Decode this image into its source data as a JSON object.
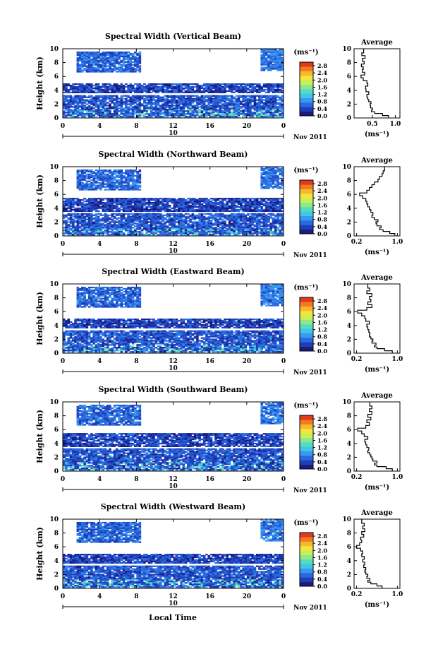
{
  "figure": {
    "xlabel": "Local Time",
    "date_label": "Nov 2011",
    "day_marker": "10",
    "colorbar_unit": "(ms⁻¹)",
    "avg_title": "Average",
    "avg_xlabel": "(ms⁻¹)",
    "ylabel": "Height (km)"
  },
  "chart_data": [
    {
      "type": "heatmap",
      "title": "Spectral Width (Vertical Beam)",
      "xlabel": "",
      "ylabel": "Height (km)",
      "xlim": [
        0,
        24
      ],
      "ylim": [
        0,
        10
      ],
      "xticks": [
        "0",
        "4",
        "8",
        "12",
        "16",
        "20",
        "0"
      ],
      "yticks": [
        "0",
        "2",
        "4",
        "6",
        "8",
        "10"
      ],
      "colorbar": {
        "unit": "(ms⁻¹)",
        "ticks": [
          "0.0",
          "0.4",
          "0.8",
          "1.2",
          "1.6",
          "2.0",
          "2.4",
          "2.8"
        ],
        "range": [
          0,
          3.0
        ]
      },
      "layers": [
        {
          "t0": 0,
          "t1": 24,
          "h0": 0.2,
          "h1": 3.3,
          "value": 0.5
        },
        {
          "t0": 0,
          "t1": 24,
          "h0": 3.6,
          "h1": 5.0,
          "value": 0.4
        },
        {
          "t0": 1.5,
          "t1": 8.5,
          "h0": 6.6,
          "h1": 9.6,
          "value": 0.6
        },
        {
          "t0": 21.5,
          "t1": 24,
          "h0": 6.8,
          "h1": 10.0,
          "value": 0.7
        }
      ],
      "average": {
        "xlabel": "(ms⁻¹)",
        "xlim": [
          0.1,
          1.1
        ],
        "xticks": [
          0.5,
          1.0
        ],
        "xticklabels": [
          "0.5",
          "1.0"
        ],
        "height": [
          0.2,
          0.5,
          0.8,
          1.0,
          1.3,
          1.6,
          1.9,
          2.2,
          2.5,
          2.8,
          3.2,
          3.6,
          4.0,
          4.4,
          4.8,
          5.2,
          5.6,
          6.0,
          6.4,
          6.8,
          7.2,
          7.6,
          8.0,
          8.4,
          8.8,
          9.2,
          9.6
        ],
        "values": [
          0.85,
          0.72,
          0.55,
          0.48,
          0.5,
          0.46,
          0.45,
          0.47,
          0.42,
          0.4,
          0.38,
          0.42,
          0.36,
          0.35,
          0.4,
          0.38,
          0.3,
          0.25,
          0.33,
          0.28,
          0.3,
          0.26,
          0.32,
          0.28,
          0.34,
          0.27,
          0.31
        ]
      }
    },
    {
      "type": "heatmap",
      "title": "Spectral Width (Northward Beam)",
      "xlabel": "",
      "ylabel": "Height (km)",
      "xlim": [
        0,
        24
      ],
      "ylim": [
        0,
        10
      ],
      "xticks": [
        "0",
        "4",
        "8",
        "12",
        "16",
        "20",
        "0"
      ],
      "yticks": [
        "0",
        "2",
        "4",
        "6",
        "8",
        "10"
      ],
      "colorbar": {
        "unit": "(ms⁻¹)",
        "ticks": [
          "0.0",
          "0.4",
          "0.8",
          "1.2",
          "1.6",
          "2.0",
          "2.4",
          "2.8"
        ],
        "range": [
          0,
          3.0
        ]
      },
      "layers": [
        {
          "t0": 0,
          "t1": 24,
          "h0": 0.2,
          "h1": 3.3,
          "value": 0.5
        },
        {
          "t0": 0,
          "t1": 24,
          "h0": 3.6,
          "h1": 5.5,
          "value": 0.4
        },
        {
          "t0": 1.5,
          "t1": 8.5,
          "h0": 6.6,
          "h1": 9.6,
          "value": 0.6
        },
        {
          "t0": 21.5,
          "t1": 24,
          "h0": 6.8,
          "h1": 10.0,
          "value": 0.7
        }
      ],
      "average": {
        "xlabel": "(ms⁻¹)",
        "xlim": [
          0.15,
          1.05
        ],
        "xticks": [
          0.2,
          1.0
        ],
        "xticklabels": [
          "0.2",
          "1.0"
        ],
        "height": [
          0.2,
          0.5,
          0.8,
          1.0,
          1.3,
          1.6,
          1.9,
          2.2,
          2.5,
          2.8,
          3.2,
          3.6,
          4.0,
          4.4,
          4.8,
          5.2,
          5.6,
          6.0,
          6.4,
          6.8,
          7.2,
          7.6,
          8.0,
          8.4,
          8.8,
          9.2,
          9.6
        ],
        "values": [
          0.95,
          0.85,
          0.72,
          0.65,
          0.68,
          0.6,
          0.58,
          0.62,
          0.55,
          0.5,
          0.52,
          0.48,
          0.45,
          0.42,
          0.4,
          0.38,
          0.32,
          0.26,
          0.4,
          0.45,
          0.5,
          0.55,
          0.62,
          0.65,
          0.7,
          0.72,
          0.75
        ]
      }
    },
    {
      "type": "heatmap",
      "title": "Spectral Width (Eastward Beam)",
      "xlabel": "",
      "ylabel": "Height (km)",
      "xlim": [
        0,
        24
      ],
      "ylim": [
        0,
        10
      ],
      "xticks": [
        "0",
        "4",
        "8",
        "12",
        "16",
        "20",
        "0"
      ],
      "yticks": [
        "0",
        "2",
        "4",
        "6",
        "8",
        "10"
      ],
      "colorbar": {
        "unit": "(ms⁻¹)",
        "ticks": [
          "0.0",
          "0.4",
          "0.8",
          "1.2",
          "1.6",
          "2.0",
          "2.4",
          "2.8"
        ],
        "range": [
          0,
          3.0
        ]
      },
      "layers": [
        {
          "t0": 0,
          "t1": 24,
          "h0": 0.2,
          "h1": 3.3,
          "value": 0.5
        },
        {
          "t0": 0,
          "t1": 24,
          "h0": 3.6,
          "h1": 5.0,
          "value": 0.4
        },
        {
          "t0": 1.5,
          "t1": 8.5,
          "h0": 6.6,
          "h1": 9.6,
          "value": 0.6
        },
        {
          "t0": 21.5,
          "t1": 24,
          "h0": 6.8,
          "h1": 10.0,
          "value": 0.7
        }
      ],
      "average": {
        "xlabel": "(ms⁻¹)",
        "xlim": [
          0.15,
          1.05
        ],
        "xticks": [
          0.2,
          1.0
        ],
        "xticklabels": [
          "0.2",
          "1.0"
        ],
        "height": [
          0.2,
          0.5,
          0.8,
          1.0,
          1.3,
          1.6,
          1.9,
          2.2,
          2.5,
          2.8,
          3.2,
          3.6,
          4.0,
          4.4,
          4.8,
          5.2,
          5.6,
          6.0,
          6.4,
          6.8,
          7.2,
          7.6,
          8.0,
          8.4,
          8.8,
          9.2,
          9.6
        ],
        "values": [
          0.9,
          0.75,
          0.6,
          0.55,
          0.58,
          0.5,
          0.52,
          0.48,
          0.45,
          0.46,
          0.44,
          0.42,
          0.4,
          0.45,
          0.38,
          0.36,
          0.3,
          0.22,
          0.4,
          0.5,
          0.42,
          0.48,
          0.45,
          0.5,
          0.4,
          0.46,
          0.42
        ]
      }
    },
    {
      "type": "heatmap",
      "title": "Spectral Width (Southward Beam)",
      "xlabel": "",
      "ylabel": "Height (km)",
      "xlim": [
        0,
        24
      ],
      "ylim": [
        0,
        10
      ],
      "xticks": [
        "0",
        "4",
        "8",
        "12",
        "16",
        "20",
        "0"
      ],
      "yticks": [
        "0",
        "2",
        "4",
        "6",
        "8",
        "10"
      ],
      "colorbar": {
        "unit": "(ms⁻¹)",
        "ticks": [
          "0.0",
          "0.4",
          "0.8",
          "1.2",
          "1.6",
          "2.0",
          "2.4",
          "2.8"
        ],
        "range": [
          0,
          3.0
        ]
      },
      "layers": [
        {
          "t0": 0,
          "t1": 24,
          "h0": 0.2,
          "h1": 3.3,
          "value": 0.5
        },
        {
          "t0": 0,
          "t1": 24,
          "h0": 3.6,
          "h1": 5.5,
          "value": 0.4
        },
        {
          "t0": 1.5,
          "t1": 8.5,
          "h0": 6.6,
          "h1": 9.6,
          "value": 0.6
        },
        {
          "t0": 21.5,
          "t1": 24,
          "h0": 6.8,
          "h1": 10.0,
          "value": 0.7
        }
      ],
      "average": {
        "xlabel": "(ms⁻¹)",
        "xlim": [
          0.15,
          1.05
        ],
        "xticks": [
          0.2,
          1.0
        ],
        "xticklabels": [
          "0.2",
          "1.0"
        ],
        "height": [
          0.2,
          0.5,
          0.8,
          1.0,
          1.3,
          1.6,
          1.9,
          2.2,
          2.5,
          2.8,
          3.2,
          3.6,
          4.0,
          4.4,
          4.8,
          5.2,
          5.6,
          6.0,
          6.4,
          6.8,
          7.2,
          7.6,
          8.0,
          8.4,
          8.8,
          9.2,
          9.6
        ],
        "values": [
          0.9,
          0.78,
          0.6,
          0.55,
          0.6,
          0.52,
          0.5,
          0.48,
          0.46,
          0.42,
          0.44,
          0.4,
          0.38,
          0.36,
          0.42,
          0.35,
          0.3,
          0.22,
          0.38,
          0.45,
          0.4,
          0.48,
          0.42,
          0.5,
          0.45,
          0.5,
          0.46
        ]
      }
    },
    {
      "type": "heatmap",
      "title": "Spectral Width (Westward Beam)",
      "xlabel": "Local Time",
      "ylabel": "Height (km)",
      "xlim": [
        0,
        24
      ],
      "ylim": [
        0,
        10
      ],
      "xticks": [
        "0",
        "4",
        "8",
        "12",
        "16",
        "20",
        "0"
      ],
      "yticks": [
        "0",
        "2",
        "4",
        "6",
        "8",
        "10"
      ],
      "colorbar": {
        "unit": "(ms⁻¹)",
        "ticks": [
          "0.0",
          "0.4",
          "0.8",
          "1.2",
          "1.6",
          "2.0",
          "2.4",
          "2.8"
        ],
        "range": [
          0,
          3.0
        ]
      },
      "layers": [
        {
          "t0": 0,
          "t1": 24,
          "h0": 0.2,
          "h1": 3.3,
          "value": 0.5
        },
        {
          "t0": 0,
          "t1": 24,
          "h0": 3.6,
          "h1": 5.0,
          "value": 0.4
        },
        {
          "t0": 1.5,
          "t1": 8.5,
          "h0": 6.6,
          "h1": 9.6,
          "value": 0.6
        },
        {
          "t0": 21.5,
          "t1": 24,
          "h0": 6.8,
          "h1": 10.0,
          "value": 0.7
        }
      ],
      "average": {
        "xlabel": "(ms⁻¹)",
        "xlim": [
          0.15,
          1.05
        ],
        "xticks": [
          0.2,
          1.0
        ],
        "xticklabels": [
          "0.2",
          "1.0"
        ],
        "height": [
          0.2,
          0.5,
          0.8,
          1.0,
          1.3,
          1.6,
          1.9,
          2.2,
          2.5,
          2.8,
          3.2,
          3.6,
          4.0,
          4.4,
          4.8,
          5.2,
          5.6,
          6.0,
          6.4,
          6.8,
          7.2,
          7.6,
          8.0,
          8.4,
          8.8,
          9.2,
          9.6
        ],
        "values": [
          0.7,
          0.6,
          0.48,
          0.42,
          0.46,
          0.4,
          0.42,
          0.38,
          0.36,
          0.38,
          0.34,
          0.36,
          0.32,
          0.35,
          0.3,
          0.32,
          0.28,
          0.2,
          0.26,
          0.3,
          0.28,
          0.34,
          0.3,
          0.36,
          0.32,
          0.35,
          0.3
        ]
      }
    }
  ],
  "colors": {
    "colormap": [
      "#1b1b80",
      "#1f3fb8",
      "#2a6ae0",
      "#3a98f0",
      "#3fc6e8",
      "#55dcc0",
      "#8ee88a",
      "#c6f05a",
      "#f2e63a",
      "#f8b82c",
      "#f47a22",
      "#e23a1c"
    ],
    "missing": "#ffffff"
  }
}
